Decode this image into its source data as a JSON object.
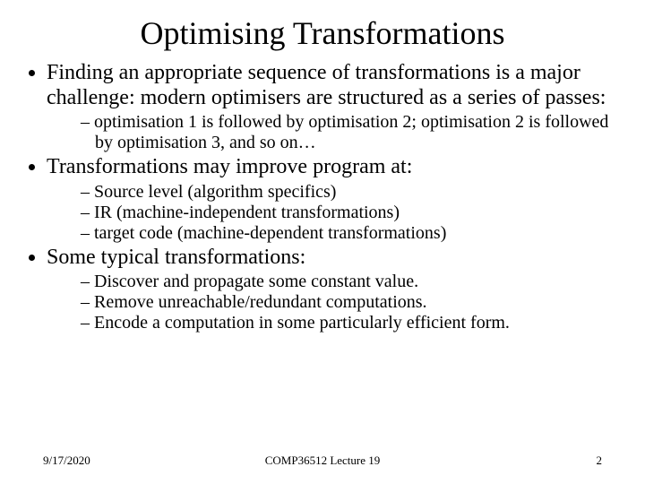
{
  "title": "Optimising Transformations",
  "bullets": [
    {
      "text": "Finding an appropriate sequence of transformations is a major challenge: modern optimisers are structured as a series of passes:",
      "sub": [
        " optimisation 1 is followed by optimisation 2; optimisation 2 is followed by optimisation 3, and so on…"
      ]
    },
    {
      "text": "Transformations may improve program at:",
      "sub": [
        "Source level (algorithm specifics)",
        "IR (machine-independent transformations)",
        "target code (machine-dependent transformations)"
      ]
    },
    {
      "text": "Some typical transformations:",
      "sub": [
        "Discover and propagate some constant value.",
        "Remove unreachable/redundant computations.",
        "Encode a computation in some particularly efficient form."
      ]
    }
  ],
  "footer": {
    "date": "9/17/2020",
    "center": "COMP36512 Lecture 19",
    "page": "2"
  },
  "style": {
    "background_color": "#ffffff",
    "text_color": "#000000",
    "title_fontsize": 36,
    "body_fontsize": 24,
    "sub_fontsize": 20,
    "footer_fontsize": 13,
    "font_family": "Times New Roman"
  }
}
